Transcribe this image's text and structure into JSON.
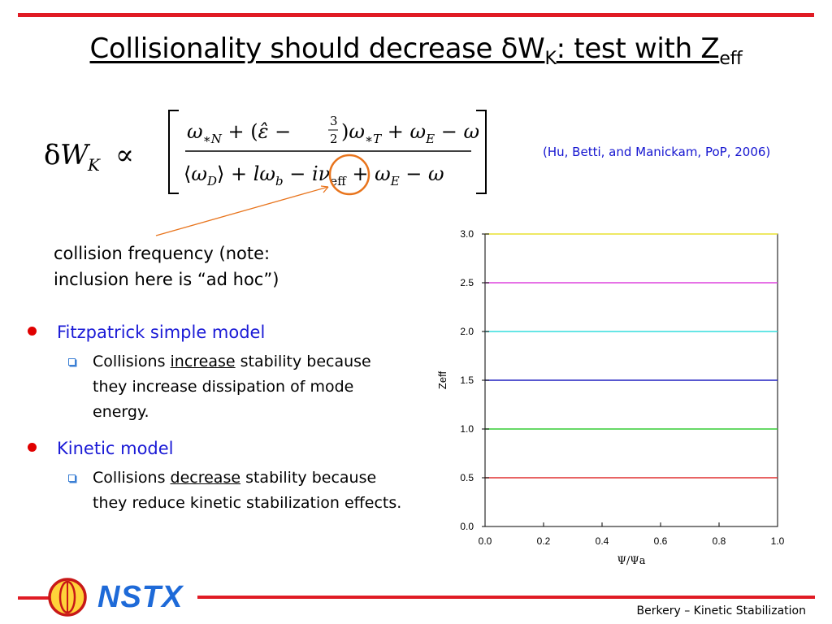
{
  "slide": {
    "title_main": "Collisionality should decrease δW",
    "title_sub_k": "K",
    "title_mid": ": test with Z",
    "title_sub_eff": "eff",
    "citation": "(Hu, Betti, and Manickam, PoP, 2006)",
    "note_line1": "collision frequency (note:",
    "note_line2": "inclusion here is “ad hoc”)",
    "bullets": [
      {
        "label": "Fitzpatrick simple model",
        "sub_before": "Collisions ",
        "sub_emph": "increase",
        "sub_after": " stability because they increase dissipation of mode energy."
      },
      {
        "label": "Kinetic model",
        "sub_before": "Collisions ",
        "sub_emph": "decrease",
        "sub_after": " stability because they reduce kinetic stabilization effects."
      }
    ],
    "footer_logo": "NSTX",
    "footer_credit": "Berkery – Kinetic Stabilization",
    "accent_color": "#e01b24"
  },
  "chart_data": {
    "type": "line",
    "xlabel": "Ψ/Ψa",
    "ylabel": "Zeff",
    "xlim": [
      0.0,
      1.0
    ],
    "ylim": [
      0.0,
      3.0
    ],
    "xticks": [
      "0.0",
      "0.2",
      "0.4",
      "0.6",
      "0.8",
      "1.0"
    ],
    "yticks": [
      "0.0",
      "0.5",
      "1.0",
      "1.5",
      "2.0",
      "2.5",
      "3.0"
    ],
    "grid": false,
    "series": [
      {
        "x": [
          0.0,
          1.0
        ],
        "y": [
          0.5,
          0.5
        ],
        "color": "#e03030"
      },
      {
        "x": [
          0.0,
          1.0
        ],
        "y": [
          1.0,
          1.0
        ],
        "color": "#33cc33"
      },
      {
        "x": [
          0.0,
          1.0
        ],
        "y": [
          1.5,
          1.5
        ],
        "color": "#2020c0"
      },
      {
        "x": [
          0.0,
          1.0
        ],
        "y": [
          2.0,
          2.0
        ],
        "color": "#33dddd"
      },
      {
        "x": [
          0.0,
          1.0
        ],
        "y": [
          2.5,
          2.5
        ],
        "color": "#dd44dd"
      },
      {
        "x": [
          0.0,
          1.0
        ],
        "y": [
          3.0,
          3.0
        ],
        "color": "#e8e030"
      }
    ]
  }
}
